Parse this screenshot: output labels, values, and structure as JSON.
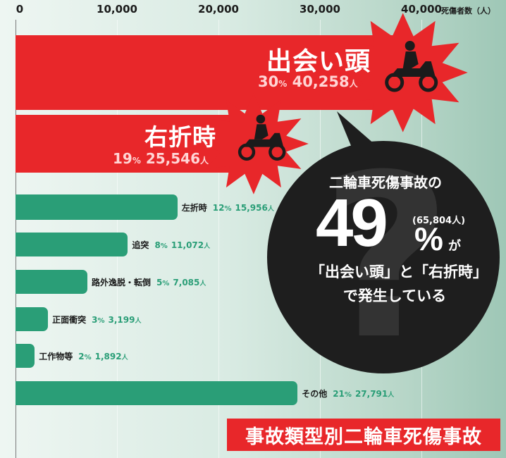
{
  "chart_data": {
    "type": "bar",
    "orientation": "horizontal",
    "title": "事故類型別二輪車死傷事故",
    "xlabel": "死傷者数（人）",
    "xlim": [
      0,
      40000
    ],
    "xticks": [
      "0",
      "10,000",
      "20,000",
      "30,000",
      "40,000"
    ],
    "grid": true,
    "bars": [
      {
        "category": "出会い頭",
        "value": 40258,
        "percent": "30",
        "value_label": "40,258",
        "highlight": true
      },
      {
        "category": "右折時",
        "value": 25546,
        "percent": "19",
        "value_label": "25,546",
        "highlight": true
      },
      {
        "category": "左折時",
        "value": 15956,
        "percent": "12",
        "value_label": "15,956",
        "highlight": false
      },
      {
        "category": "追突",
        "value": 11072,
        "percent": "8",
        "value_label": "11,072",
        "highlight": false
      },
      {
        "category": "路外逸脱・転倒",
        "value": 7085,
        "percent": "5",
        "value_label": "7,085",
        "highlight": false
      },
      {
        "category": "正面衝突",
        "value": 3199,
        "percent": "3",
        "value_label": "3,199",
        "highlight": false
      },
      {
        "category": "工作物等",
        "value": 1892,
        "percent": "2",
        "value_label": "1,892",
        "highlight": false
      },
      {
        "category": "その他",
        "value": 27791,
        "percent": "21",
        "value_label": "27,791",
        "highlight": false
      }
    ],
    "percent_suffix": "%",
    "unit_suffix": "人"
  },
  "callout": {
    "line1": "二輪車死傷事故の",
    "big_number": "49",
    "big_suffix": "%",
    "particle": "が",
    "paren_value": "(65,804人)",
    "line3": "「出会い頭」と「右折時」",
    "line4": "で発生している"
  },
  "colors": {
    "highlight": "#e8272a",
    "bar": "#2a9e77",
    "bubble": "#1e1e1e"
  },
  "icons": [
    "scooter-rider-icon"
  ]
}
